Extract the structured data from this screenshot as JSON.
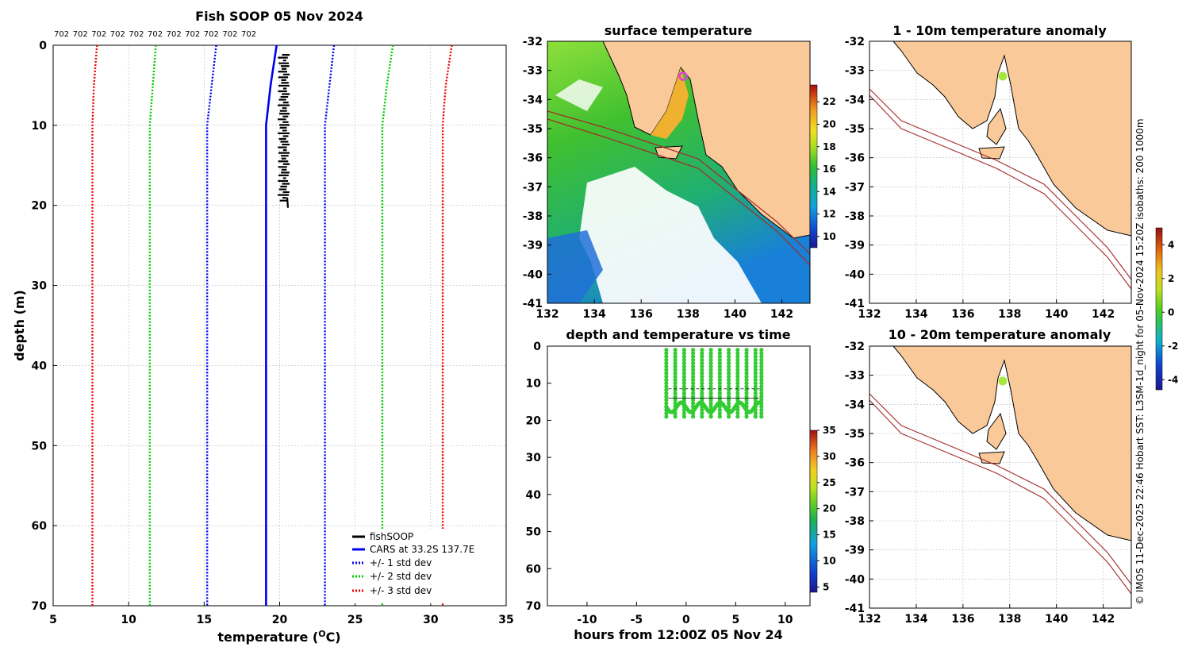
{
  "colors": {
    "land": "#f9c99a",
    "profile": "#000000",
    "cars_mean": "#0000ee",
    "std1": "#0000ee",
    "std2": "#00cc00",
    "std3": "#ee0000",
    "isobath": "#a52a2a",
    "vessel": "#a8e63c",
    "vessel_ring": "#e040e0"
  },
  "profile_panel": {
    "title": "Fish SOOP 05 Nov 2024",
    "serial_labels": [
      "702",
      "702",
      "702",
      "702",
      "702",
      "702",
      "702",
      "702",
      "702",
      "702",
      "702"
    ],
    "legend": [
      "fishSOOP",
      "CARS at 33.2S 137.7E",
      "+/- 1 std dev",
      "+/- 2 std dev",
      "+/- 3 std dev"
    ]
  },
  "chart_data": [
    {
      "type": "line",
      "title": "Fish SOOP 05 Nov 2024",
      "xlabel": "temperature (°C)",
      "ylabel": "depth (m)",
      "xlim": [
        5,
        35
      ],
      "ylim": [
        70,
        0
      ],
      "xticks": [
        5,
        10,
        15,
        20,
        25,
        30,
        35
      ],
      "yticks": [
        0,
        10,
        20,
        30,
        40,
        50,
        60,
        70
      ],
      "depths": [
        0,
        5,
        10,
        20,
        30,
        40,
        50,
        60,
        70
      ],
      "series": [
        {
          "name": "fishSOOP",
          "x": [
            20.1,
            20.3,
            20.4,
            20.3,
            20.4,
            20.3,
            20.5
          ],
          "y": [
            1,
            3,
            6,
            10,
            14,
            18,
            20
          ]
        },
        {
          "name": "CARS at 33.2S 137.7E",
          "values": [
            19.8,
            19.4,
            19.1,
            19.1,
            19.1,
            19.1,
            19.1,
            19.1,
            19.1
          ]
        },
        {
          "name": "+1 std dev",
          "values": [
            23.6,
            23.3,
            23.0,
            23.0,
            23.0,
            23.0,
            23.0,
            23.0,
            23.0
          ]
        },
        {
          "name": "-1 std dev",
          "values": [
            15.8,
            15.5,
            15.2,
            15.2,
            15.2,
            15.2,
            15.2,
            15.2,
            15.2
          ]
        },
        {
          "name": "+2 std dev",
          "values": [
            27.5,
            27.1,
            26.8,
            26.8,
            26.8,
            26.8,
            26.8,
            26.8,
            26.8
          ]
        },
        {
          "name": "-2 std dev",
          "values": [
            11.8,
            11.6,
            11.4,
            11.4,
            11.4,
            11.4,
            11.4,
            11.4,
            11.4
          ]
        },
        {
          "name": "+3 std dev",
          "values": [
            31.4,
            31.0,
            30.8,
            30.8,
            30.8,
            30.8,
            30.8,
            30.8,
            30.8
          ]
        },
        {
          "name": "-3 std dev",
          "values": [
            7.9,
            7.7,
            7.6,
            7.6,
            7.6,
            7.6,
            7.6,
            7.6,
            7.6
          ]
        }
      ]
    },
    {
      "type": "heatmap",
      "title": "surface temperature",
      "xlim": [
        132,
        143.2
      ],
      "ylim": [
        -41,
        -32
      ],
      "xticks": [
        132,
        134,
        136,
        138,
        140,
        142
      ],
      "yticks": [
        -32,
        -33,
        -34,
        -35,
        -36,
        -37,
        -38,
        -39,
        -40,
        -41
      ],
      "colorbar": {
        "ticks": [
          10,
          12,
          14,
          16,
          18,
          20,
          22
        ],
        "range": [
          9,
          23.5
        ]
      }
    },
    {
      "type": "scatter",
      "title": "depth and temperature vs time",
      "xlabel": "hours from 12:00Z 05 Nov 24",
      "xlim": [
        -14,
        12.5
      ],
      "ylim": [
        70,
        0
      ],
      "xticks": [
        -10,
        -5,
        0,
        5,
        10
      ],
      "yticks": [
        0,
        10,
        20,
        30,
        40,
        50,
        60,
        70
      ],
      "cast_times": [
        -2.0,
        -1.1,
        -0.2,
        0.7,
        1.6,
        2.5,
        3.4,
        4.3,
        5.2,
        6.1,
        7.0,
        7.6
      ],
      "depth_range": [
        1,
        19
      ],
      "colorbar": {
        "ticks": [
          5,
          10,
          15,
          20,
          25,
          30,
          35
        ],
        "range": [
          4,
          35
        ]
      }
    },
    {
      "type": "heatmap",
      "title": "1 - 10m temperature anomaly",
      "xlim": [
        132,
        143.2
      ],
      "ylim": [
        -41,
        -32
      ],
      "xticks": [
        132,
        134,
        136,
        138,
        140,
        142
      ],
      "yticks": [
        -32,
        -33,
        -34,
        -35,
        -36,
        -37,
        -38,
        -39,
        -40,
        -41
      ],
      "vessel": {
        "lon": 137.7,
        "lat": -33.2
      }
    },
    {
      "type": "heatmap",
      "title": "10 - 20m temperature anomaly",
      "xlim": [
        132,
        143.2
      ],
      "ylim": [
        -41,
        -32
      ],
      "xticks": [
        132,
        134,
        136,
        138,
        140,
        142
      ],
      "yticks": [
        -32,
        -33,
        -34,
        -35,
        -36,
        -37,
        -38,
        -39,
        -40,
        -41
      ],
      "vessel": {
        "lon": 137.7,
        "lat": -33.2
      },
      "colorbar": {
        "ticks": [
          -4,
          -2,
          0,
          2,
          4
        ],
        "range": [
          -4.6,
          5
        ]
      }
    }
  ],
  "credit": "© IMOS 11-Dec-2025 22:46 Hobart SST: L3SM-1d_night for 05-Nov-2024 15:20Z isobaths: 200  1000m"
}
